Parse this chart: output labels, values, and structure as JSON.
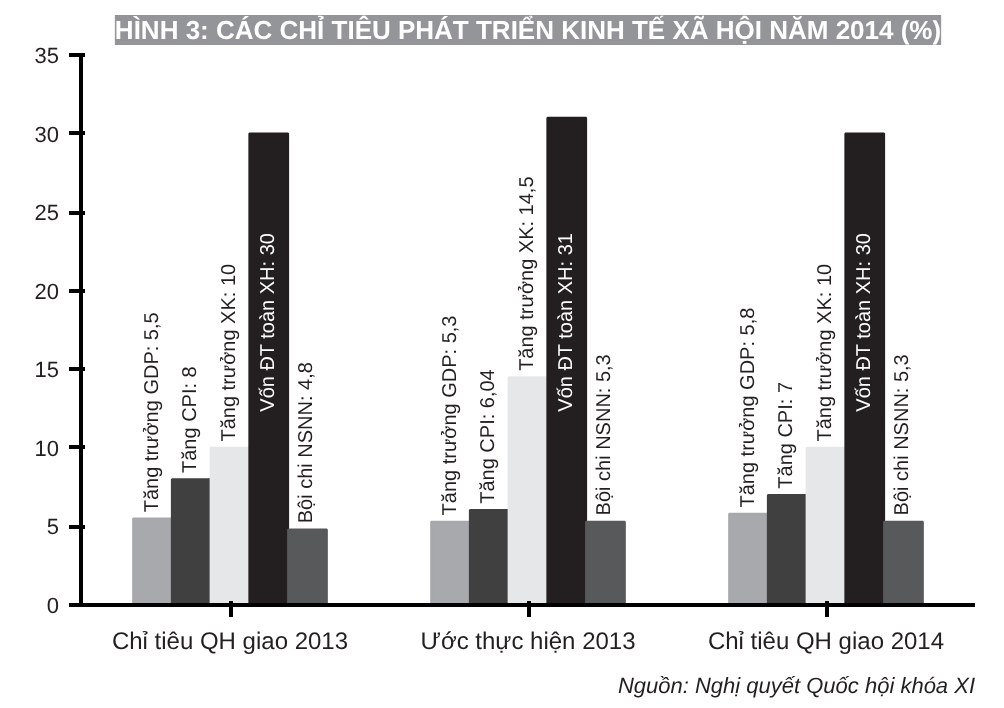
{
  "chart_data": {
    "type": "bar",
    "title": "HÌNH 3: CÁC CHỈ TIÊU PHÁT TRIỂN KINH TẾ XÃ HỘI NĂM 2014 (%)",
    "categories": [
      "Chỉ tiêu QH giao 2013",
      "Ước thực hiện 2013",
      "Chỉ tiêu QH giao 2014"
    ],
    "series": [
      {
        "color": "#a7a9ac",
        "values": [
          5.5,
          5.3,
          5.8
        ],
        "value_labels": [
          "Tăng trưởng GDP: 5,5",
          "Tăng trưởng GDP: 5,3",
          "Tăng trưởng GDP: 5,8"
        ]
      },
      {
        "color": "#404041",
        "values": [
          8,
          6.04,
          7
        ],
        "value_labels": [
          "Tăng CPI: 8",
          "Tăng CPI: 6,04",
          "Tăng CPI: 7"
        ]
      },
      {
        "color": "#e6e7e8",
        "values": [
          10,
          14.5,
          10
        ],
        "value_labels": [
          "Tăng trưởng XK: 10",
          "Tăng trưởng XK: 14,5",
          "Tăng trưởng XK: 10"
        ]
      },
      {
        "color": "#231f20",
        "values": [
          30,
          31,
          30
        ],
        "value_labels": [
          "Vốn ĐT toàn XH: 30",
          "Vốn ĐT toàn XH: 31",
          "Vốn ĐT toàn XH: 30"
        ]
      },
      {
        "color": "#58595b",
        "values": [
          4.8,
          5.3,
          5.3
        ],
        "value_labels": [
          "Bội chi NSNN: 4,8",
          "Bội chi NSNN: 5,3",
          "Bội chi NSNN: 5,3"
        ]
      }
    ],
    "ylim": [
      0,
      35
    ],
    "yticks": [
      0,
      5,
      10,
      15,
      20,
      25,
      30,
      35
    ],
    "grid": false,
    "annotations": [
      "Nguồn: Nghị quyết Quốc hội khóa XI"
    ]
  }
}
